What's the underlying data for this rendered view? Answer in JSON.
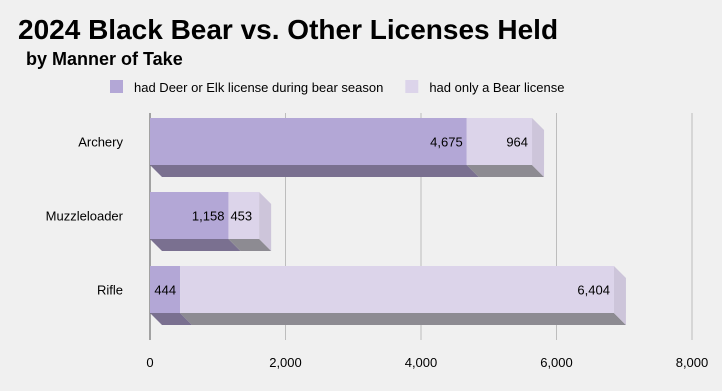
{
  "chart_data": {
    "type": "bar",
    "orientation": "horizontal",
    "stacked": true,
    "title": "2024 Black Bear vs. Other Licenses Held",
    "subtitle": "by Manner of Take",
    "categories": [
      "Archery",
      "Muzzleloader",
      "Rifle"
    ],
    "series": [
      {
        "name": "had Deer or Elk license during bear season",
        "values": [
          4675,
          1158,
          444
        ],
        "color": "#b3a7d6"
      },
      {
        "name": "had only a Bear license",
        "values": [
          964,
          453,
          6404
        ],
        "color": "#dcd4ea"
      }
    ],
    "data_labels": [
      [
        "4,675",
        "1,158",
        "444"
      ],
      [
        "964",
        "453",
        "6,404"
      ]
    ],
    "xlim": [
      0,
      8000
    ],
    "xticks": [
      0,
      2000,
      4000,
      6000,
      8000
    ],
    "xtick_labels": [
      "0",
      "2,000",
      "4,000",
      "6,000",
      "8,000"
    ],
    "xlabel": "",
    "ylabel": "",
    "legend_position": "top",
    "grid": "vertical"
  }
}
